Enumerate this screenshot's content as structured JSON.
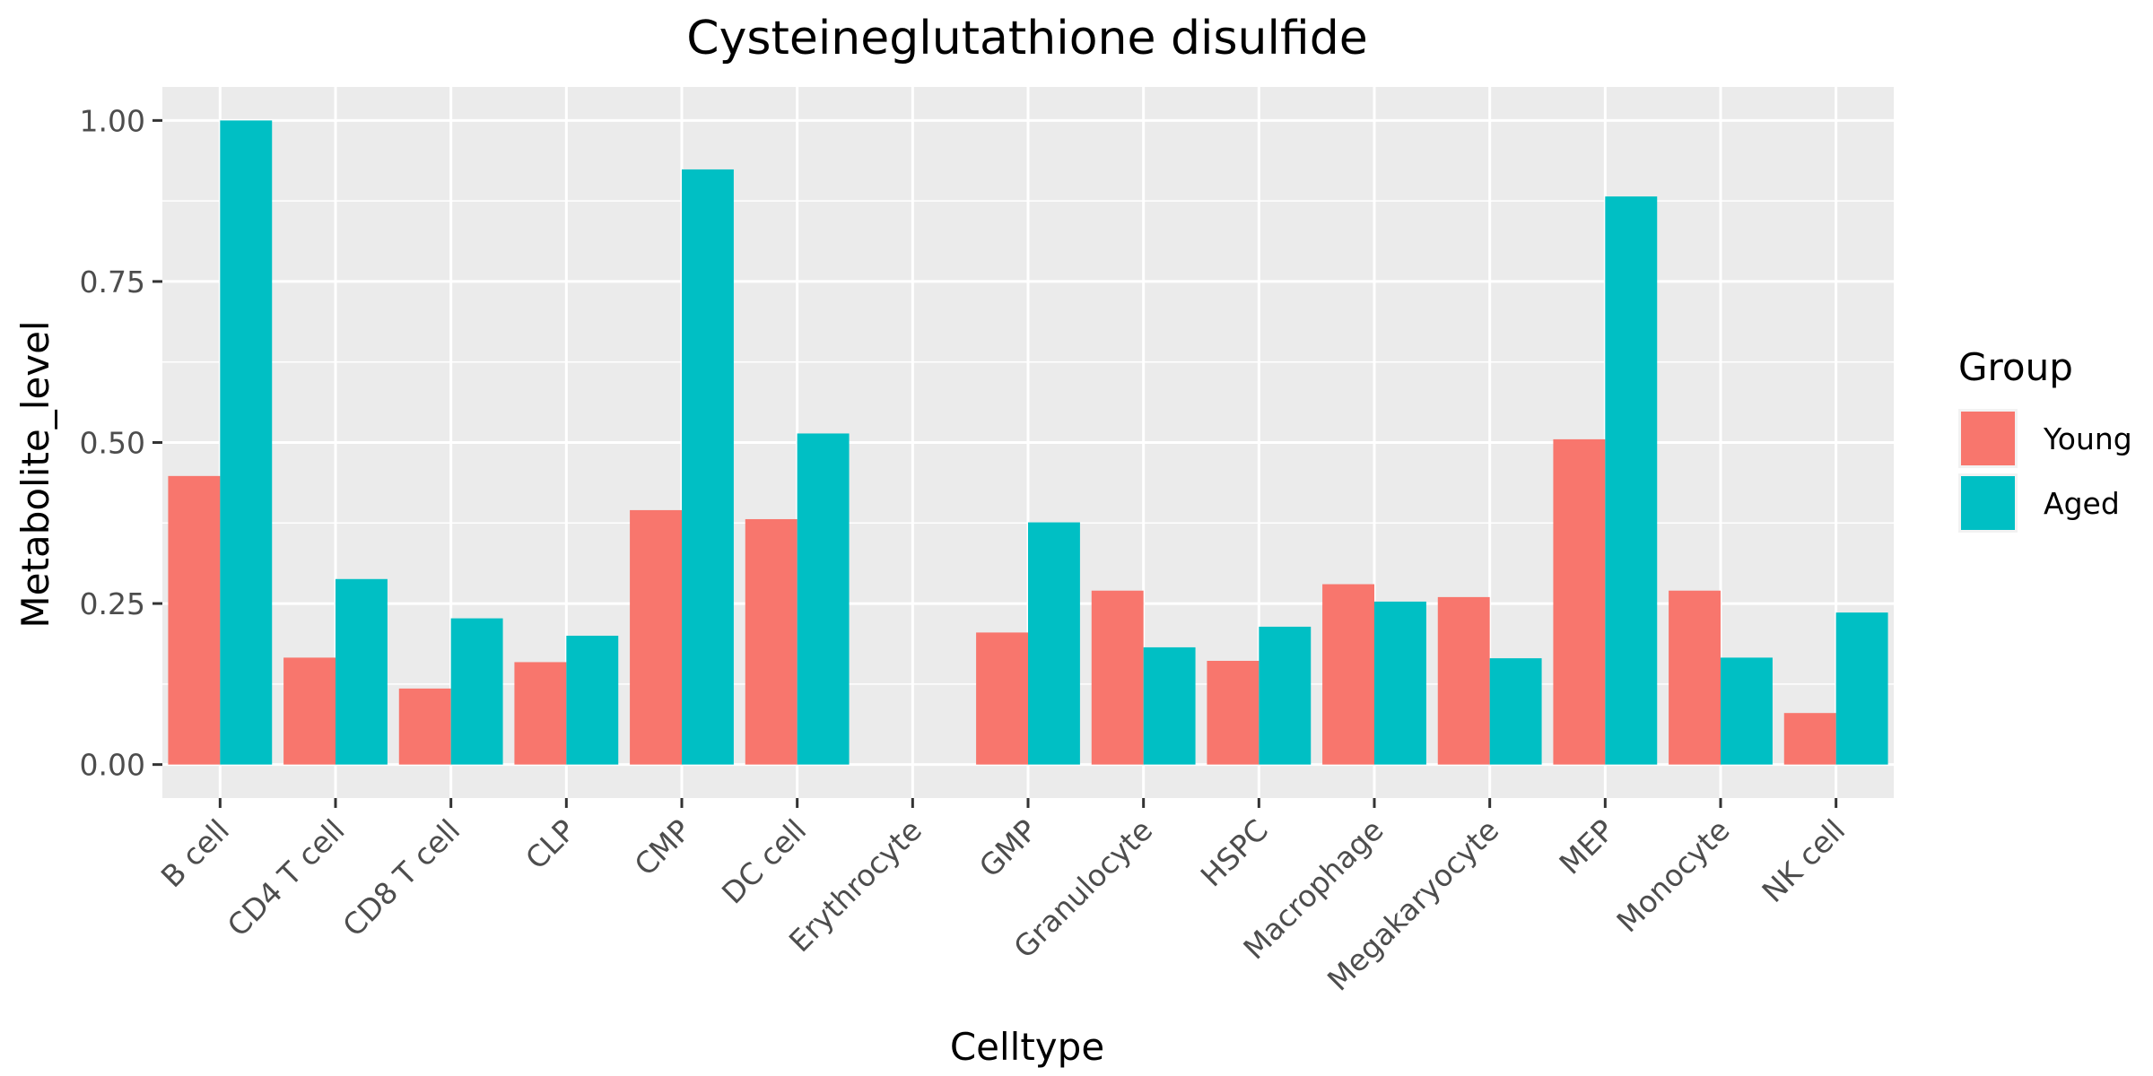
{
  "chart_data": {
    "type": "bar",
    "title": "Cysteineglutathione disulfide",
    "xlabel": "Celltype",
    "ylabel": "Metabolite_level",
    "categories": [
      "B cell",
      "CD4 T cell",
      "CD8 T cell",
      "CLP",
      "CMP",
      "DC cell",
      "Erythrocyte",
      "GMP",
      "Granulocyte",
      "HSPC",
      "Macrophage",
      "Megakaryocyte",
      "MEP",
      "Monocyte",
      "NK cell"
    ],
    "series": [
      {
        "name": "Young",
        "color": "#F8766D",
        "values": [
          0.448,
          0.166,
          0.118,
          0.159,
          0.395,
          0.381,
          null,
          0.205,
          0.27,
          0.161,
          0.28,
          0.26,
          0.505,
          0.27,
          0.08
        ]
      },
      {
        "name": "Aged",
        "color": "#00BFC4",
        "values": [
          1.0,
          0.288,
          0.227,
          0.2,
          0.924,
          0.514,
          null,
          0.376,
          0.182,
          0.214,
          0.253,
          0.165,
          0.882,
          0.166,
          0.236
        ]
      }
    ],
    "ylim": [
      -0.052,
      1.052
    ],
    "yticks": [
      0.0,
      0.25,
      0.5,
      0.75,
      1.0
    ],
    "ytick_labels": [
      "0.00",
      "0.25",
      "0.50",
      "0.75",
      "1.00"
    ],
    "grid": true,
    "legend": {
      "title": "Group",
      "position": "right"
    },
    "panel_background": "#EBEBEB",
    "grid_color": "#FFFFFF"
  }
}
